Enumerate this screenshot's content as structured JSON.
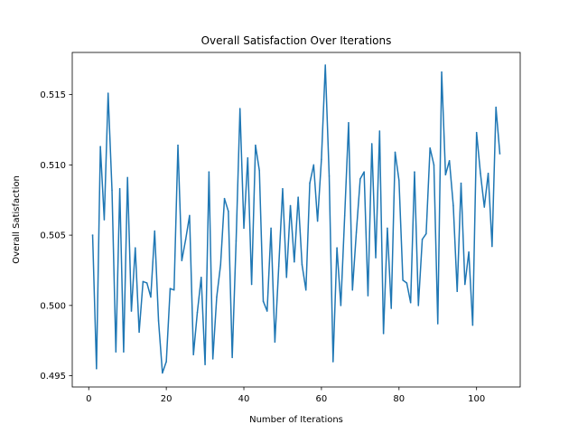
{
  "chart_data": {
    "type": "line",
    "title": "Overall Satisfaction Over Iterations",
    "xlabel": "Number of Iterations",
    "ylabel": "Overall Satisfaction",
    "xlim": [
      -4.25,
      111.25
    ],
    "ylim": [
      0.4942,
      0.518
    ],
    "xticks": [
      0,
      20,
      40,
      60,
      80,
      100
    ],
    "yticks": [
      0.495,
      0.5,
      0.505,
      0.51,
      0.515
    ],
    "ytick_labels": [
      "0.495",
      "0.500",
      "0.505",
      "0.510",
      "0.515"
    ],
    "grid": false,
    "legend": "none",
    "series": [
      {
        "color": "#1f77b4",
        "x": [
          1,
          2,
          3,
          4,
          5,
          6,
          7,
          8,
          9,
          10,
          11,
          12,
          13,
          14,
          15,
          16,
          17,
          18,
          19,
          20,
          21,
          22,
          23,
          24,
          25,
          26,
          27,
          28,
          29,
          30,
          31,
          32,
          33,
          34,
          35,
          36,
          37,
          38,
          39,
          40,
          41,
          42,
          43,
          44,
          45,
          46,
          47,
          48,
          49,
          50,
          51,
          52,
          53,
          54,
          55,
          56,
          57,
          58,
          59,
          60,
          61,
          62,
          63,
          64,
          65,
          66,
          67,
          68,
          69,
          70,
          71,
          72,
          73,
          74,
          75,
          76,
          77,
          78,
          79,
          80,
          81,
          82,
          83,
          84,
          85,
          86,
          87,
          88,
          89,
          90,
          91,
          92,
          93,
          94,
          95,
          96,
          97,
          98,
          99,
          100,
          101,
          102,
          103,
          104,
          105,
          106
        ],
        "y": [
          0.505,
          0.4955,
          0.5113,
          0.5061,
          0.5151,
          0.5082,
          0.4967,
          0.5083,
          0.4967,
          0.5091,
          0.4996,
          0.5041,
          0.4981,
          0.5017,
          0.5016,
          0.5006,
          0.5053,
          0.4989,
          0.4952,
          0.496,
          0.5012,
          0.5011,
          0.5114,
          0.5032,
          0.5047,
          0.5064,
          0.4965,
          0.4995,
          0.502,
          0.4958,
          0.5095,
          0.4962,
          0.5006,
          0.5029,
          0.5076,
          0.5067,
          0.4963,
          0.5046,
          0.514,
          0.5055,
          0.5105,
          0.5015,
          0.5114,
          0.5096,
          0.5003,
          0.4996,
          0.5055,
          0.4974,
          0.5028,
          0.5083,
          0.502,
          0.5071,
          0.5031,
          0.5077,
          0.5029,
          0.5011,
          0.5087,
          0.51,
          0.506,
          0.5104,
          0.5171,
          0.5092,
          0.496,
          0.5041,
          0.5,
          0.5064,
          0.513,
          0.5011,
          0.5052,
          0.509,
          0.5095,
          0.5007,
          0.5115,
          0.5034,
          0.5124,
          0.498,
          0.5055,
          0.4998,
          0.5109,
          0.5089,
          0.5018,
          0.5016,
          0.5002,
          0.5095,
          0.5,
          0.5047,
          0.5051,
          0.5112,
          0.51,
          0.4987,
          0.5166,
          0.5093,
          0.5103,
          0.5071,
          0.501,
          0.5087,
          0.5015,
          0.5038,
          0.4986,
          0.5123,
          0.5094,
          0.507,
          0.5094,
          0.5042,
          0.5141,
          0.5108
        ]
      }
    ]
  }
}
